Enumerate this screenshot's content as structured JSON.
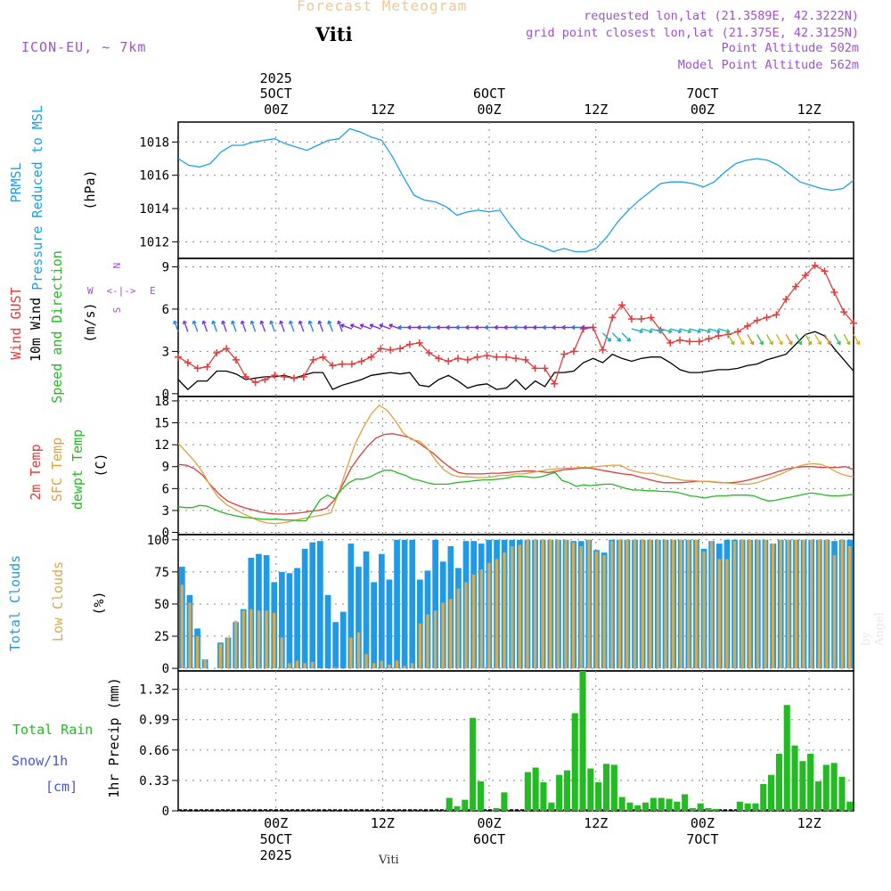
{
  "header": {
    "product_title": "Forecast Meteogram",
    "location": "Viti",
    "model": "ICON-EU, ~ 7km",
    "requested": "requested lon,lat (21.3589E, 42.3222N)",
    "grid_point": "grid point closest lon,lat (21.375E, 42.3125N)",
    "point_altitude": "Point Altitude 502m",
    "model_altitude": "Model Point Altitude 562m"
  },
  "footer": {
    "location_small": "Viti",
    "signature": "by Angel"
  },
  "colors": {
    "pressure": "#1ea0e6",
    "gust": "#e03c3c",
    "wind": "#000000",
    "temp2m": "#e03c3c",
    "sfc": "#e0a040",
    "dewpt": "#22bb22",
    "total_clouds": "#1e9ae6",
    "low_clouds": "#d8aa50",
    "rain": "#22bb22",
    "snow": "#4455dd",
    "purple": "#a050d0"
  },
  "chart_data": [
    {
      "id": "pressure",
      "type": "line",
      "ylim": [
        1011,
        1019.2
      ],
      "ylabel_lines": [
        "PRMSL",
        "Pressure Reduced to MSL"
      ],
      "unit": "(hPa)",
      "yticks": [
        1012,
        1014,
        1016,
        1018
      ],
      "x": [
        0,
        1,
        2,
        3,
        4,
        5,
        6,
        7,
        8,
        9,
        10,
        11,
        12,
        13,
        14,
        15,
        16,
        17,
        18,
        19,
        20,
        21,
        22,
        23,
        24,
        25,
        26,
        27,
        28,
        29,
        30,
        31,
        32,
        33,
        34,
        35,
        36,
        37,
        38,
        39,
        40,
        41,
        42,
        43,
        44,
        45,
        46,
        47,
        48,
        49,
        50,
        51,
        52,
        53,
        54,
        55,
        56,
        57,
        58,
        59,
        60,
        61,
        62,
        63
      ],
      "values": [
        1017.0,
        1016.6,
        1016.5,
        1016.7,
        1017.4,
        1017.8,
        1017.8,
        1018.0,
        1018.1,
        1018.2,
        1017.9,
        1017.7,
        1017.5,
        1017.8,
        1018.1,
        1018.2,
        1018.8,
        1018.6,
        1018.3,
        1018.1,
        1017.1,
        1015.9,
        1014.8,
        1014.5,
        1014.4,
        1014.1,
        1013.6,
        1013.8,
        1013.9,
        1013.8,
        1013.9,
        1013.0,
        1012.2,
        1011.9,
        1011.7,
        1011.4,
        1011.6,
        1011.4,
        1011.4,
        1011.6,
        1012.3,
        1013.2,
        1013.9,
        1014.5,
        1015.0,
        1015.5,
        1015.6,
        1015.6,
        1015.5,
        1015.3,
        1015.6,
        1016.2,
        1016.7,
        1016.9,
        1017.0,
        1016.9,
        1016.6,
        1016.1,
        1015.6,
        1015.4,
        1015.2,
        1015.1,
        1015.2,
        1015.7
      ]
    },
    {
      "id": "wind",
      "type": "line",
      "ylim": [
        -0.2,
        9.6
      ],
      "ylabel_lines": [
        "Wind GUST",
        "10m Wind",
        "Speed and Direction"
      ],
      "unit": "(m/s)",
      "yticks": [
        0,
        3,
        6,
        9
      ],
      "compass": {
        "north": "N",
        "south": "S",
        "west": "W",
        "east": "E",
        "arrow": "<-|->"
      },
      "series": [
        {
          "name": "Wind GUST",
          "values": [
            2.6,
            2.2,
            1.8,
            1.9,
            2.9,
            3.2,
            2.4,
            1.2,
            0.8,
            1.0,
            1.3,
            1.2,
            1.1,
            1.2,
            2.4,
            2.6,
            2.0,
            2.1,
            2.1,
            2.3,
            2.6,
            3.2,
            3.1,
            3.2,
            3.5,
            3.6,
            2.9,
            2.5,
            2.3,
            2.5,
            2.4,
            2.6,
            2.7,
            2.6,
            2.6,
            2.5,
            2.4,
            1.8,
            1.8,
            0.7,
            2.8,
            3.0,
            4.6,
            4.7,
            3.1,
            5.4,
            6.3,
            5.3,
            5.3,
            5.4,
            4.5,
            3.6,
            3.8,
            3.7,
            3.7,
            3.9,
            4.1,
            4.2,
            4.4,
            4.8,
            5.2,
            5.4,
            5.6,
            6.7,
            7.6,
            8.4,
            9.1,
            8.7,
            7.2,
            5.8,
            5.0
          ]
        },
        {
          "name": "10m Wind",
          "values": [
            1.0,
            0.3,
            0.9,
            0.9,
            1.6,
            1.6,
            1.4,
            1.0,
            1.1,
            1.2,
            1.2,
            1.3,
            1.1,
            1.3,
            1.5,
            1.5,
            0.3,
            0.6,
            0.8,
            1.0,
            1.3,
            1.4,
            1.5,
            1.4,
            1.5,
            0.6,
            0.5,
            1.0,
            1.3,
            0.9,
            0.4,
            0.6,
            0.7,
            0.3,
            0.4,
            1.0,
            0.3,
            0.9,
            0.5,
            1.5,
            1.5,
            1.6,
            2.2,
            2.5,
            2.2,
            2.8,
            2.5,
            2.3,
            2.5,
            2.6,
            2.6,
            2.2,
            1.7,
            1.5,
            1.5,
            1.6,
            1.7,
            1.7,
            1.8,
            2.0,
            2.1,
            2.4,
            2.6,
            2.8,
            3.5,
            4.2,
            4.4,
            4.1,
            3.2,
            2.4,
            1.6
          ]
        }
      ],
      "arrows_count": 71
    },
    {
      "id": "temperature",
      "type": "line",
      "ylim": [
        -0.3,
        18.6
      ],
      "ylabel_lines": [
        "2m Temp",
        "SFC Temp",
        "dewpt Temp"
      ],
      "unit": "(C)",
      "yticks": [
        0,
        3,
        6,
        9,
        12,
        15,
        18
      ],
      "series": [
        {
          "name": "2m Temp",
          "values": [
            9.3,
            9.2,
            8.7,
            7.8,
            6.4,
            5.2,
            4.3,
            3.8,
            3.4,
            3.1,
            2.8,
            2.6,
            2.5,
            2.5,
            2.6,
            2.7,
            2.9,
            3.0,
            3.3,
            4.5,
            6.6,
            8.8,
            10.4,
            11.8,
            12.9,
            13.4,
            13.5,
            13.3,
            13.0,
            12.4,
            11.6,
            10.8,
            9.8,
            8.9,
            8.2,
            8.0,
            8.0,
            8.0,
            8.1,
            8.1,
            8.2,
            8.3,
            8.4,
            8.4,
            8.3,
            8.2,
            8.4,
            8.6,
            8.7,
            8.8,
            8.8,
            8.6,
            8.4,
            8.2,
            8.0,
            7.9,
            7.6,
            7.3,
            7.0,
            6.8,
            6.8,
            6.8,
            6.9,
            7.0,
            7.0,
            6.9,
            6.8,
            6.8,
            6.9,
            7.1,
            7.4,
            7.7,
            8.0,
            8.4,
            8.7,
            8.9,
            9.0,
            9.0,
            8.9,
            8.9,
            8.9,
            9.0,
            8.6
          ]
        },
        {
          "name": "SFC Temp",
          "values": [
            12.2,
            11.0,
            9.8,
            8.3,
            6.4,
            4.8,
            3.8,
            3.2,
            2.6,
            2.1,
            1.6,
            1.3,
            1.2,
            1.3,
            1.5,
            1.8,
            2.0,
            2.2,
            2.4,
            2.7,
            5.6,
            8.9,
            12.1,
            14.3,
            16.2,
            17.4,
            16.7,
            15.3,
            13.6,
            12.7,
            12.5,
            11.5,
            9.9,
            8.6,
            7.9,
            7.6,
            7.6,
            7.5,
            7.5,
            7.6,
            7.8,
            7.8,
            8.0,
            8.0,
            8.2,
            8.4,
            8.6,
            8.7,
            8.8,
            8.8,
            8.9,
            8.9,
            9.0,
            9.1,
            9.2,
            9.2,
            8.6,
            8.3,
            8.1,
            8.1,
            7.8,
            7.6,
            7.3,
            7.1,
            7.1,
            7.0,
            7.0,
            6.9,
            6.8,
            6.7,
            6.6,
            6.6,
            6.8,
            7.2,
            7.6,
            8.0,
            8.5,
            9.0,
            9.3,
            9.4,
            9.3,
            8.8,
            8.2,
            7.8,
            7.6
          ]
        },
        {
          "name": "dewpt Temp",
          "values": [
            3.5,
            3.4,
            3.4,
            3.7,
            3.6,
            3.2,
            2.8,
            2.5,
            2.3,
            2.1,
            2.0,
            1.9,
            1.8,
            1.8,
            1.8,
            1.7,
            1.7,
            1.6,
            1.6,
            3.0,
            4.5,
            5.1,
            4.6,
            5.9,
            6.8,
            7.3,
            7.3,
            7.6,
            8.1,
            8.5,
            8.5,
            8.1,
            7.8,
            7.3,
            7.1,
            6.8,
            6.6,
            6.6,
            6.6,
            6.8,
            6.9,
            7.0,
            7.1,
            7.2,
            7.2,
            7.3,
            7.4,
            7.6,
            7.7,
            7.6,
            7.5,
            7.6,
            7.9,
            8.2,
            7.1,
            6.8,
            6.3,
            6.5,
            6.4,
            6.5,
            6.6,
            6.6,
            6.3,
            6.0,
            5.8,
            5.8,
            5.7,
            5.7,
            5.6,
            5.6,
            5.5,
            5.3,
            5.0,
            4.9,
            4.7,
            4.9,
            5.0,
            5.0,
            5.1,
            5.1,
            5.1,
            5.0,
            4.6,
            4.3,
            4.4,
            4.6,
            4.8,
            5.0,
            5.2,
            5.4,
            5.3,
            5.1,
            5.0,
            5.0,
            5.1,
            5.2
          ]
        }
      ]
    },
    {
      "id": "clouds",
      "type": "bar",
      "ylim": [
        -2,
        104
      ],
      "ylabel_lines": [
        "Total Clouds",
        "Low Clouds"
      ],
      "unit": "(%)",
      "yticks": [
        0,
        25,
        50,
        75,
        100
      ],
      "series": [
        {
          "name": "Total Clouds",
          "values": [
            79,
            57,
            31,
            7,
            0,
            20,
            24,
            36,
            46,
            86,
            89,
            88,
            67,
            75,
            74,
            78,
            93,
            98,
            99,
            57,
            36,
            44,
            97,
            79,
            91,
            67,
            89,
            69,
            100,
            100,
            100,
            69,
            76,
            100,
            83,
            95,
            78,
            99,
            99,
            97,
            100,
            100,
            100,
            100,
            100,
            100,
            100,
            100,
            100,
            100,
            100,
            99,
            99,
            100,
            92,
            90,
            100,
            100,
            100,
            100,
            100,
            100,
            100,
            100,
            100,
            100,
            100,
            100,
            93,
            99,
            97,
            100,
            100,
            100,
            100,
            100,
            100,
            97,
            100,
            100,
            100,
            100,
            100,
            100,
            100,
            99,
            100,
            100
          ]
        },
        {
          "name": "Low Clouds",
          "values": [
            65,
            51,
            25,
            7,
            0,
            19,
            24,
            37,
            45,
            46,
            45,
            45,
            43,
            24,
            4,
            6,
            4,
            5,
            0,
            0,
            1,
            0,
            24,
            28,
            11,
            4,
            6,
            3,
            6,
            2,
            4,
            35,
            42,
            45,
            51,
            54,
            62,
            67,
            73,
            77,
            82,
            85,
            90,
            95,
            96,
            100,
            100,
            100,
            100,
            100,
            100,
            98,
            95,
            100,
            91,
            88,
            99,
            100,
            100,
            100,
            100,
            100,
            100,
            100,
            100,
            100,
            100,
            100,
            91,
            99,
            85,
            85,
            99,
            100,
            100,
            100,
            100,
            97,
            100,
            100,
            100,
            100,
            100,
            100,
            100,
            88,
            100,
            95,
            85
          ]
        }
      ]
    },
    {
      "id": "precip",
      "type": "bar",
      "ylim": [
        0,
        1.52
      ],
      "ylabel_lines": [
        "1hr Precip (mm)"
      ],
      "unit": "(mm)",
      "left_labels": [
        "Total  Rain",
        "Snow/1h",
        "[cm]"
      ],
      "yticks": [
        0,
        0.33,
        0.66,
        0.99,
        1.32
      ],
      "ytick_labels": [
        "0",
        "0.33",
        "0.66",
        "0.99",
        "1.32"
      ],
      "series": [
        {
          "name": "Total Rain",
          "values": [
            0,
            0,
            0,
            0,
            0,
            0,
            0,
            0,
            0,
            0,
            0,
            0,
            0,
            0,
            0,
            0,
            0,
            0,
            0,
            0,
            0,
            0,
            0,
            0,
            0,
            0,
            0,
            0,
            0,
            0,
            0,
            0,
            0,
            0,
            0.14,
            0.05,
            0.12,
            1.01,
            0.32,
            0,
            0.03,
            0.2,
            0,
            0,
            0.42,
            0.47,
            0.31,
            0.09,
            0.39,
            0.44,
            1.06,
            1.52,
            0.46,
            0.31,
            0.51,
            0.5,
            0.15,
            0.09,
            0.06,
            0.09,
            0.14,
            0.14,
            0.13,
            0.1,
            0.18,
            0.03,
            0.08,
            0.03,
            0.02,
            0,
            0,
            0.1,
            0.08,
            0.08,
            0.29,
            0.39,
            0.62,
            1.15,
            0.71,
            0.54,
            0.62,
            0.32,
            0.5,
            0.52,
            0.37,
            0.1
          ]
        }
      ]
    }
  ],
  "time_axis": {
    "top_year": "2025",
    "top_labels": [
      {
        "t": 0,
        "lines": [
          "5OCT",
          "00Z"
        ]
      },
      {
        "t": 12,
        "lines": [
          "",
          "12Z"
        ]
      },
      {
        "t": 24,
        "lines": [
          "6OCT",
          "00Z"
        ]
      },
      {
        "t": 36,
        "lines": [
          "",
          "12Z"
        ]
      },
      {
        "t": 48,
        "lines": [
          "7OCT",
          "00Z"
        ]
      },
      {
        "t": 60,
        "lines": [
          "",
          "12Z"
        ]
      }
    ],
    "bottom_labels": [
      {
        "t": 0,
        "lines": [
          "00Z",
          "5OCT",
          "2025"
        ]
      },
      {
        "t": 12,
        "lines": [
          "12Z"
        ]
      },
      {
        "t": 24,
        "lines": [
          "00Z",
          "6OCT"
        ]
      },
      {
        "t": 36,
        "lines": [
          "12Z"
        ]
      },
      {
        "t": 48,
        "lines": [
          "00Z",
          "7OCT"
        ]
      },
      {
        "t": 60,
        "lines": [
          "12Z"
        ]
      }
    ],
    "start_hour": -11,
    "end_hour": 65
  }
}
